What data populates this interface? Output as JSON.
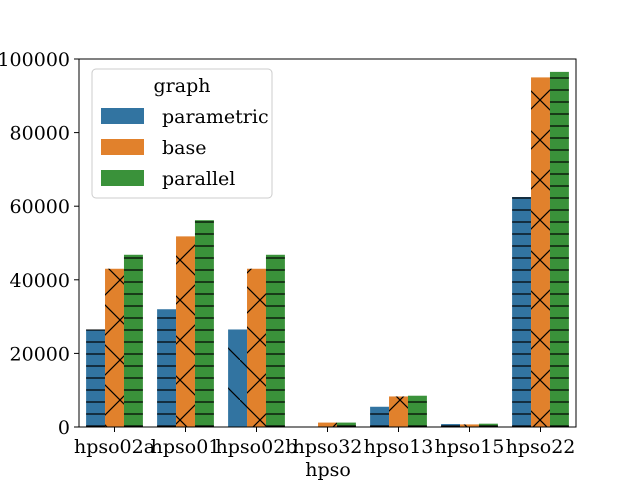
{
  "chart_data": {
    "type": "bar",
    "xlabel": "hpso",
    "ylabel": "",
    "ylim": [
      0,
      100000
    ],
    "yticks": [
      0,
      20000,
      40000,
      60000,
      80000,
      100000
    ],
    "grid": false,
    "legend": {
      "title": "graph",
      "placement": "top-left"
    },
    "categories": [
      "hpso02a",
      "hpso01",
      "hpso02b",
      "hpso32",
      "hpso13",
      "hpso15",
      "hpso22"
    ],
    "series": [
      {
        "name": "parametric",
        "color": "#3274a1",
        "values": [
          26500,
          32000,
          26500,
          0,
          5500,
          800,
          62500
        ]
      },
      {
        "name": "base",
        "color": "#e1812c",
        "values": [
          43000,
          51800,
          43000,
          1200,
          8300,
          700,
          95000
        ]
      },
      {
        "name": "parallel",
        "color": "#3a923a",
        "values": [
          46800,
          56200,
          46800,
          1200,
          8500,
          900,
          96500
        ]
      }
    ]
  }
}
